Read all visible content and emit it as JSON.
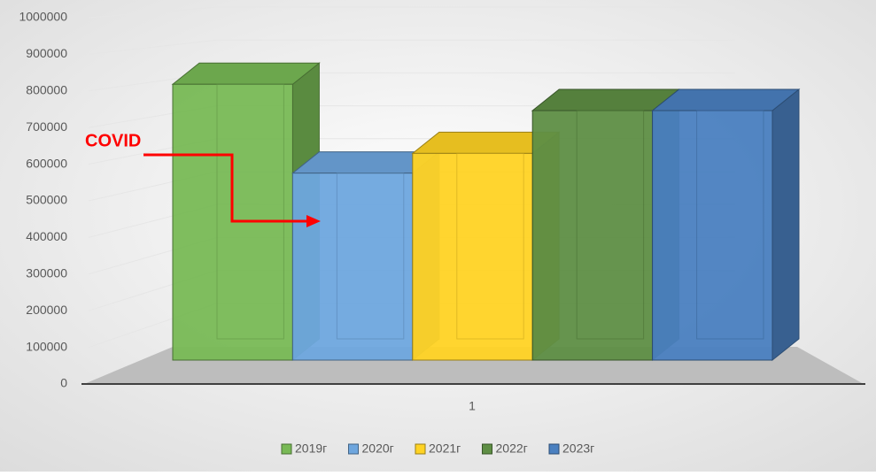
{
  "chart_data": {
    "type": "bar3d",
    "categories": [
      "1"
    ],
    "series": [
      {
        "name": "2019г",
        "color": "#78b955",
        "values": [
          830000
        ]
      },
      {
        "name": "2020г",
        "color": "#6ea6de",
        "values": [
          560000
        ]
      },
      {
        "name": "2021г",
        "color": "#ffd324",
        "values": [
          620000
        ]
      },
      {
        "name": "2022г",
        "color": "#5e8e44",
        "values": [
          750000
        ]
      },
      {
        "name": "2023г",
        "color": "#4a80c0",
        "values": [
          750000
        ]
      }
    ],
    "ylim": [
      0,
      1000000
    ],
    "yticks": [
      0,
      100000,
      200000,
      300000,
      400000,
      500000,
      600000,
      700000,
      800000,
      900000,
      1000000
    ],
    "grid": true,
    "legend": "bottom",
    "annotation": "COVID"
  }
}
